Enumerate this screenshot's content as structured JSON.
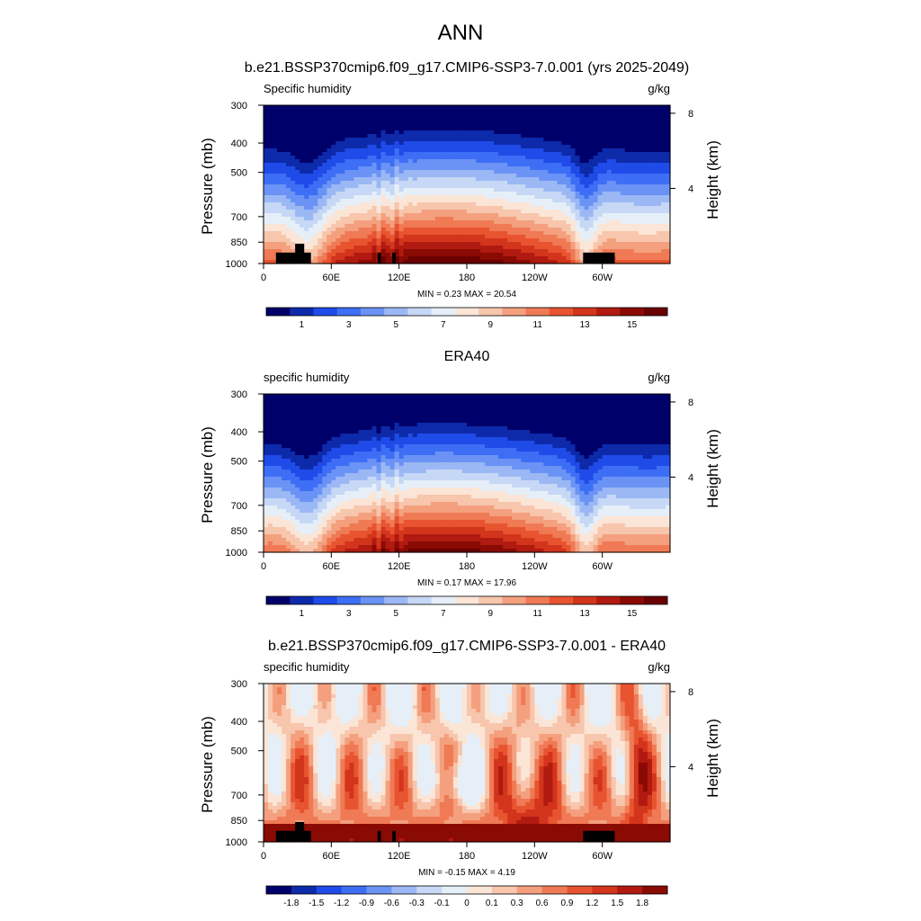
{
  "figure": {
    "title": "ANN"
  },
  "chart_data": [
    {
      "type": "heatmap",
      "title": "b.e21.BSSP370cmip6.f09_g17.CMIP6-SSP3-7.0.001 (yrs 2025-2049)",
      "left_label": "Specific humidity",
      "units": "g/kg",
      "ylabel": "Pressure (mb)",
      "ylabel_right": "Height (km)",
      "x_ticks": [
        "0",
        "60E",
        "120E",
        "180",
        "120W",
        "60W"
      ],
      "x_tick_values": [
        0,
        60,
        120,
        180,
        240,
        300
      ],
      "xlim": [
        0,
        360
      ],
      "y_ticks": [
        "300",
        "400",
        "500",
        "700",
        "850",
        "1000"
      ],
      "y_tick_values": [
        300,
        400,
        500,
        700,
        850,
        1000
      ],
      "ylim": [
        1000,
        300
      ],
      "y_scale": "log",
      "right_ticks": [
        "8",
        "4"
      ],
      "right_tick_values": [
        8,
        4
      ],
      "stats": "MIN =   0.23  MAX =  20.54",
      "colorbar": {
        "labels": [
          "1",
          "3",
          "5",
          "7",
          "9",
          "11",
          "13",
          "15"
        ],
        "colors": [
          "#00006a",
          "#0d2aaa",
          "#1f4be8",
          "#3d6ef5",
          "#6b93f5",
          "#9bb8f5",
          "#c6d8f5",
          "#e6eff8",
          "#fbe5d6",
          "#f7c6ad",
          "#f4a07e",
          "#ef7a55",
          "#e85430",
          "#d3341c",
          "#b11a10",
          "#8a0a04",
          "#6a0000"
        ]
      }
    },
    {
      "type": "heatmap",
      "title": "ERA40",
      "left_label": "specific humidity",
      "units": "g/kg",
      "ylabel": "Pressure (mb)",
      "ylabel_right": "Height (km)",
      "x_ticks": [
        "0",
        "60E",
        "120E",
        "180",
        "120W",
        "60W"
      ],
      "x_tick_values": [
        0,
        60,
        120,
        180,
        240,
        300
      ],
      "xlim": [
        0,
        360
      ],
      "y_ticks": [
        "300",
        "400",
        "500",
        "700",
        "850",
        "1000"
      ],
      "y_tick_values": [
        300,
        400,
        500,
        700,
        850,
        1000
      ],
      "ylim": [
        1000,
        300
      ],
      "y_scale": "log",
      "right_ticks": [
        "8",
        "4"
      ],
      "right_tick_values": [
        8,
        4
      ],
      "stats": "MIN =   0.17  MAX =  17.96",
      "colorbar": {
        "labels": [
          "1",
          "3",
          "5",
          "7",
          "9",
          "11",
          "13",
          "15"
        ],
        "colors": [
          "#00006a",
          "#0d2aaa",
          "#1f4be8",
          "#3d6ef5",
          "#6b93f5",
          "#9bb8f5",
          "#c6d8f5",
          "#e6eff8",
          "#fbe5d6",
          "#f7c6ad",
          "#f4a07e",
          "#ef7a55",
          "#e85430",
          "#d3341c",
          "#b11a10",
          "#8a0a04",
          "#6a0000"
        ]
      }
    },
    {
      "type": "heatmap",
      "title": "b.e21.BSSP370cmip6.f09_g17.CMIP6-SSP3-7.0.001 - ERA40",
      "left_label": "specific humidity",
      "units": "g/kg",
      "ylabel": "Pressure (mb)",
      "ylabel_right": "Height (km)",
      "x_ticks": [
        "0",
        "60E",
        "120E",
        "180",
        "120W",
        "60W"
      ],
      "x_tick_values": [
        0,
        60,
        120,
        180,
        240,
        300
      ],
      "xlim": [
        0,
        360
      ],
      "y_ticks": [
        "300",
        "400",
        "500",
        "700",
        "850",
        "1000"
      ],
      "y_tick_values": [
        300,
        400,
        500,
        700,
        850,
        1000
      ],
      "ylim": [
        1000,
        300
      ],
      "y_scale": "log",
      "right_ticks": [
        "8",
        "4"
      ],
      "right_tick_values": [
        8,
        4
      ],
      "stats": "MIN =  -0.15  MAX =   4.19",
      "colorbar": {
        "labels": [
          "-1.8",
          "-1.5",
          "-1.2",
          "-0.9",
          "-0.6",
          "-0.3",
          "-0.1",
          "0",
          "0.1",
          "0.3",
          "0.6",
          "0.9",
          "1.2",
          "1.5",
          "1.8"
        ],
        "colors": [
          "#00006a",
          "#0d2aaa",
          "#1f4be8",
          "#3d6ef5",
          "#6b93f5",
          "#9bb8f5",
          "#c6d8f5",
          "#e6eff8",
          "#fbe5d6",
          "#f7c6ad",
          "#f4a07e",
          "#ef7a55",
          "#e85430",
          "#d3341c",
          "#b11a10",
          "#8a0a04"
        ]
      }
    }
  ]
}
